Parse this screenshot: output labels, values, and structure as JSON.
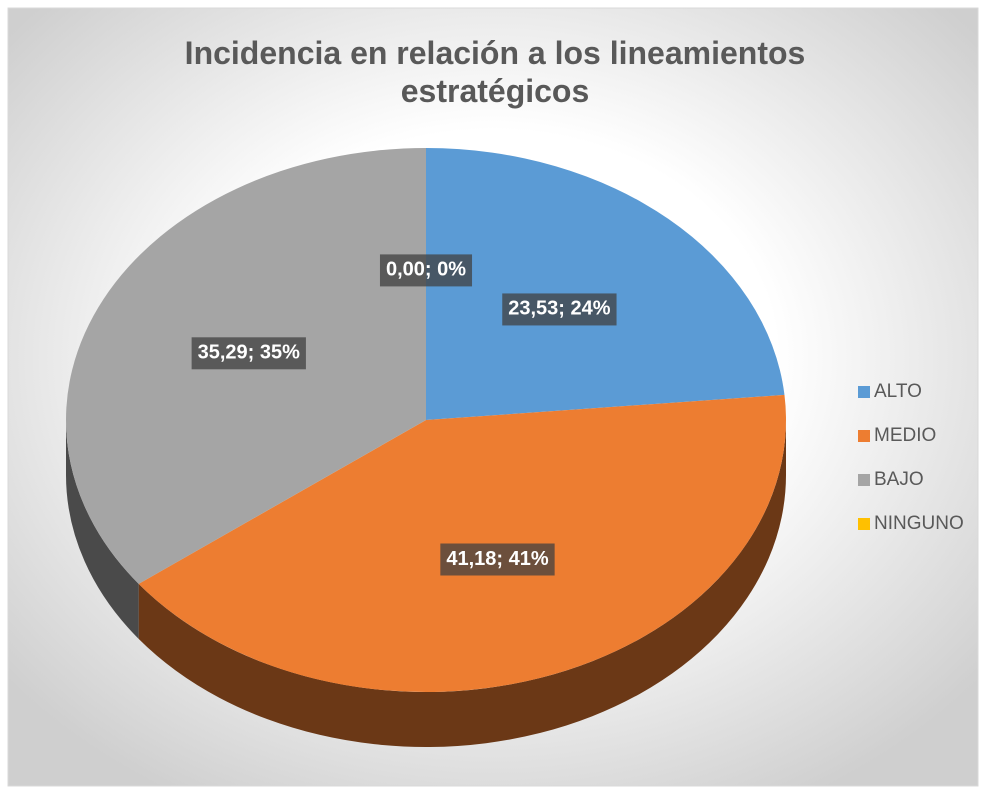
{
  "chart_data": {
    "type": "pie3d",
    "title": "Incidencia en relación a los lineamientos estratégicos",
    "categories": [
      "ALTO",
      "MEDIO",
      "BAJO",
      "NINGUNO"
    ],
    "values": [
      23.53,
      41.18,
      35.29,
      0
    ],
    "value_labels": [
      "23,53; 24%",
      "41,18; 41%",
      "35,29; 35%",
      "0,00; 0%"
    ],
    "colors": [
      "#5b9bd5",
      "#ed7d31",
      "#a5a5a5",
      "#ffc000"
    ],
    "legend": "right"
  }
}
